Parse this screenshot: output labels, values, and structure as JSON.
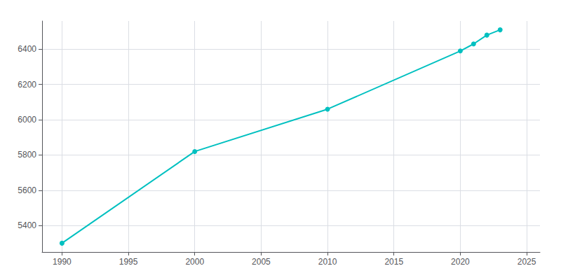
{
  "chart_data": {
    "type": "line",
    "x": [
      1990,
      2000,
      2010,
      2020,
      2021,
      2022,
      2023
    ],
    "values": [
      5300,
      5820,
      6060,
      6390,
      6430,
      6480,
      6510
    ],
    "color": "#00C0C0",
    "marker": "circle",
    "xlim": [
      1988.5,
      2026
    ],
    "ylim": [
      5250,
      6560
    ],
    "xticks": [
      1990,
      1995,
      2000,
      2005,
      2010,
      2015,
      2020,
      2025
    ],
    "yticks": [
      5400,
      5600,
      5800,
      6000,
      6200,
      6400
    ],
    "grid": true
  }
}
